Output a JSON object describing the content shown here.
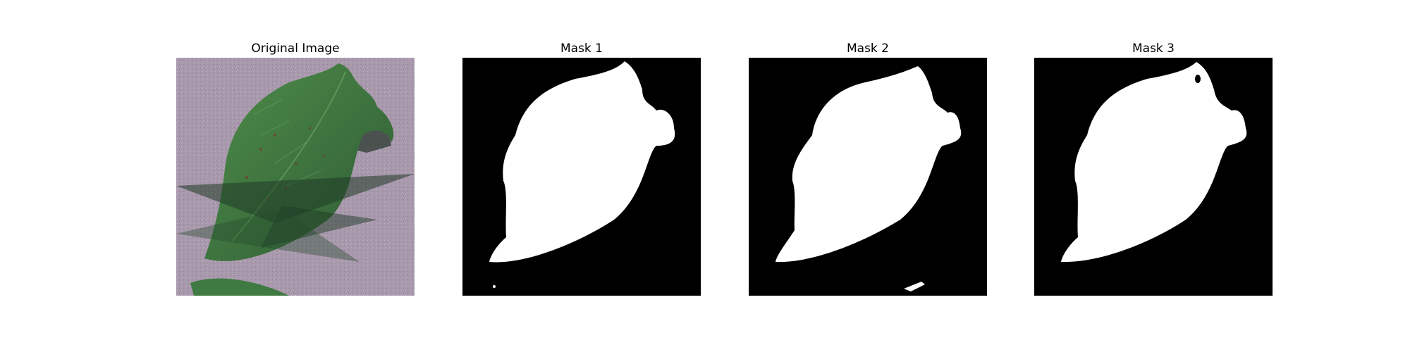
{
  "figure": {
    "panels": [
      {
        "title": "Original Image",
        "kind": "photo"
      },
      {
        "title": "Mask 1",
        "kind": "mask"
      },
      {
        "title": "Mask 2",
        "kind": "mask"
      },
      {
        "title": "Mask 3",
        "kind": "mask"
      }
    ]
  },
  "colors": {
    "background": "#ffffff",
    "photo_background": "#a898ac",
    "leaf_dark": "#2e5a34",
    "leaf_light": "#4f8e4a",
    "mask_background": "#000000",
    "mask_foreground": "#ffffff"
  }
}
